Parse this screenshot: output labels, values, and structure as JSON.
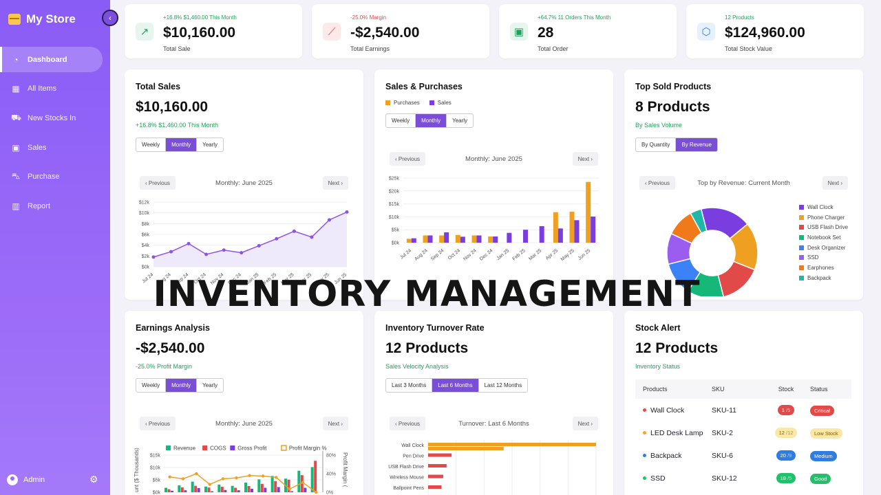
{
  "app": {
    "title": "My Store",
    "collapse_icon": "‹"
  },
  "nav": [
    {
      "label": "Dashboard",
      "icon": "dashboard-icon",
      "glyph": "◔",
      "active": true
    },
    {
      "label": "All Items",
      "icon": "boxes-icon",
      "glyph": "▦"
    },
    {
      "label": "New Stocks In",
      "icon": "truck-icon",
      "glyph": "⛟"
    },
    {
      "label": "Sales",
      "icon": "money-icon",
      "glyph": "▣"
    },
    {
      "label": "Purchase",
      "icon": "cart-icon",
      "glyph": "⛍"
    },
    {
      "label": "Report",
      "icon": "bar-chart-icon",
      "glyph": "▥"
    }
  ],
  "user": {
    "name": "Admin"
  },
  "stats": [
    {
      "sub": "+16.8% $1,460.00 This Month",
      "value": "$10,160.00",
      "label": "Total Sale",
      "color": "#22a05a"
    },
    {
      "sub": "-25.0% Margin",
      "value": "-$2,540.00",
      "label": "Total Earnings",
      "color": "#e24a4a"
    },
    {
      "sub": "+64.7% 11 Orders This Month",
      "value": "28",
      "label": "Total Order",
      "color": "#22a05a"
    },
    {
      "sub": "12 Products",
      "value": "$124,960.00",
      "label": "Total Stock Value",
      "color": "#22a05a"
    }
  ],
  "total_sales": {
    "title": "Total Sales",
    "big": "$10,160.00",
    "sub": "+16.8% $1,460.00 This Month",
    "tabs": [
      "Weekly",
      "Monthly",
      "Yearly"
    ],
    "active_tab": 1,
    "prev": "‹ Previous",
    "next": "Next ›",
    "period": "Monthly: June 2025"
  },
  "sales_purchases": {
    "title": "Sales & Purchases",
    "legend": [
      "Purchases",
      "Sales"
    ],
    "tabs": [
      "Weekly",
      "Monthly",
      "Yearly"
    ],
    "active_tab": 1,
    "prev": "‹ Previous",
    "next": "Next ›",
    "period": "Monthly: June 2025"
  },
  "top_sold": {
    "title": "Top Sold Products",
    "big": "8 Products",
    "sub": "By Sales Volume",
    "tabs": [
      "By Quantity",
      "By Revenue"
    ],
    "active_tab": 1,
    "prev": "‹ Previous",
    "next": "Next ›",
    "period": "Top by Revenue: Current Month"
  },
  "earnings": {
    "title": "Earnings Analysis",
    "big": "-$2,540.00",
    "sub": "-25.0% Profit Margin",
    "tabs": [
      "Weekly",
      "Monthly",
      "Yearly"
    ],
    "active_tab": 1,
    "prev": "‹ Previous",
    "next": "Next ›",
    "period": "Monthly: June 2025"
  },
  "turnover": {
    "title": "Inventory Turnover Rate",
    "big": "12 Products",
    "sub": "Sales Velocity Analysis",
    "tabs": [
      "Last 3 Months",
      "Last 6 Months",
      "Last 12 Months"
    ],
    "active_tab": 1,
    "prev": "‹ Previous",
    "next": "Next ›",
    "period": "Turnover: Last 6 Months"
  },
  "stock_alert": {
    "title": "Stock Alert",
    "big": "12 Products",
    "sub": "Inventory Status",
    "headers": [
      "Products",
      "SKU",
      "Stock",
      "Status"
    ],
    "rows": [
      {
        "product": "Wall Clock",
        "sku": "SKU-11",
        "stock": "1",
        "of": "/5",
        "status": "Critical",
        "color": "#e24a4a",
        "pill_bg": "#e24a4a",
        "pill_fg": "#fff"
      },
      {
        "product": "LED Desk Lamp",
        "sku": "SKU-2",
        "stock": "12",
        "of": "/12",
        "status": "Low Stock",
        "color": "#f5a524",
        "pill_bg": "#fbe7a6",
        "pill_fg": "#7a5a00"
      },
      {
        "product": "Backpack",
        "sku": "SKU-6",
        "stock": "20",
        "of": "/9",
        "status": "Medium",
        "color": "#2f7de1",
        "pill_bg": "#2f7de1",
        "pill_fg": "#fff"
      },
      {
        "product": "SSD",
        "sku": "SKU-12",
        "stock": "18",
        "of": "/5",
        "status": "Good",
        "color": "#22c06a",
        "pill_bg": "#22c06a",
        "pill_fg": "#fff"
      }
    ]
  },
  "overlay_text": "INVENTORY MANAGEMENT",
  "chart_data": [
    {
      "type": "line",
      "name": "total-sales",
      "categories": [
        "Jul 24",
        "Aug 24",
        "Sep 24",
        "Oct 24",
        "Nov 24",
        "Dec 24",
        "Jan 25",
        "Feb 25",
        "Mar 25",
        "Apr 25",
        "May 25",
        "Jun 25"
      ],
      "values": [
        1800,
        2800,
        4300,
        2300,
        3100,
        2600,
        3900,
        5200,
        6600,
        5500,
        8700,
        10160
      ],
      "yticks": [
        "$0k",
        "$2k",
        "$4k",
        "$6k",
        "$8k",
        "$10k",
        "$12k"
      ],
      "ylim": [
        0,
        12000
      ]
    },
    {
      "type": "bar",
      "name": "sales-purchases",
      "categories": [
        "Jul 24",
        "Aug 24",
        "Sep 24",
        "Oct 24",
        "Nov 24",
        "Dec 24",
        "Jan 25",
        "Feb 25",
        "Mar 25",
        "Apr 25",
        "May 25",
        "Jun 25"
      ],
      "series": [
        {
          "name": "Purchases",
          "color": "#f0a020",
          "values": [
            1500,
            2800,
            2800,
            3000,
            2800,
            2400,
            0,
            0,
            0,
            11800,
            12000,
            23500
          ]
        },
        {
          "name": "Sales",
          "color": "#7a3ee0",
          "values": [
            1700,
            2800,
            4000,
            2300,
            2800,
            2400,
            3800,
            5000,
            6400,
            5500,
            8700,
            10100
          ]
        }
      ],
      "yticks": [
        "$0k",
        "$5k",
        "$10k",
        "$15k",
        "$20k",
        "$25k"
      ],
      "ylim": [
        0,
        25000
      ]
    },
    {
      "type": "pie",
      "name": "top-sold-donut",
      "labels": [
        "Wall Clock",
        "Phone Charger",
        "USB Flash Drive",
        "Notebook Set",
        "Desk Organizer",
        "SSD",
        "Earphones",
        "Backpack"
      ],
      "colors": [
        "#7a3ee0",
        "#f0a020",
        "#e24a4a",
        "#16b879",
        "#3b82f6",
        "#9b5cf0",
        "#f07a1a",
        "#20b7a8"
      ],
      "values": [
        18,
        17,
        15,
        13,
        12,
        11,
        10,
        4
      ]
    },
    {
      "type": "bar",
      "name": "earnings-analysis",
      "legend": [
        "Revenue",
        "COGS",
        "Gross Profit",
        "Profit Margin %"
      ],
      "yticks": [
        "$0k",
        "$5k",
        "$10k",
        "$15k"
      ],
      "y2ticks": [
        "0%",
        "40%",
        "80%"
      ],
      "ylim": [
        0,
        15000
      ],
      "ylabel": "unt ($ Thousands)",
      "y2label": "Profit Margin (",
      "series": [
        {
          "name": "Revenue",
          "color": "#16b879",
          "values": [
            1800,
            2800,
            4300,
            2300,
            3100,
            2600,
            3900,
            5200,
            6600,
            5500,
            8700,
            10160
          ]
        },
        {
          "name": "COGS",
          "color": "#e24a4a",
          "values": [
            1200,
            2000,
            2600,
            1900,
            2200,
            1800,
            2500,
            3400,
            4500,
            5100,
            6900,
            12700
          ]
        },
        {
          "name": "Gross Profit",
          "color": "#7a3ee0",
          "values": [
            600,
            800,
            1700,
            400,
            900,
            800,
            1400,
            1800,
            2100,
            400,
            1800,
            0
          ]
        },
        {
          "name": "Profit Margin %",
          "color": "#f0a020",
          "values": [
            33,
            29,
            40,
            17,
            29,
            31,
            36,
            35,
            32,
            7,
            21,
            -25
          ]
        }
      ]
    },
    {
      "type": "bar",
      "name": "inventory-turnover",
      "orientation": "horizontal",
      "categories": [
        "Wall Clock",
        "Pen Drive",
        "USB Flash Drive",
        "Wireless Mouse",
        "Ballpoint Pens"
      ],
      "series": [
        {
          "name": "Turnover",
          "color": "#f0a020",
          "values": [
            100,
            30,
            0,
            0,
            0
          ]
        },
        {
          "name": "Turnover 2",
          "color": "#e24a4a",
          "values": [
            0,
            0,
            0,
            0,
            0
          ]
        }
      ],
      "bars": [
        {
          "label": "Wall Clock",
          "values": [
            100,
            45
          ],
          "colors": [
            "#f0a020",
            "#f0a020"
          ]
        },
        {
          "label": "Pen Drive",
          "values": [
            14
          ],
          "colors": [
            "#e24a4a"
          ]
        },
        {
          "label": "USB Flash Drive",
          "values": [
            11
          ],
          "colors": [
            "#e24a4a"
          ]
        },
        {
          "label": "Wireless Mouse",
          "values": [
            9
          ],
          "colors": [
            "#e24a4a"
          ]
        },
        {
          "label": "Ballpoint Pens",
          "values": [
            8
          ],
          "colors": [
            "#e24a4a"
          ]
        }
      ]
    }
  ]
}
